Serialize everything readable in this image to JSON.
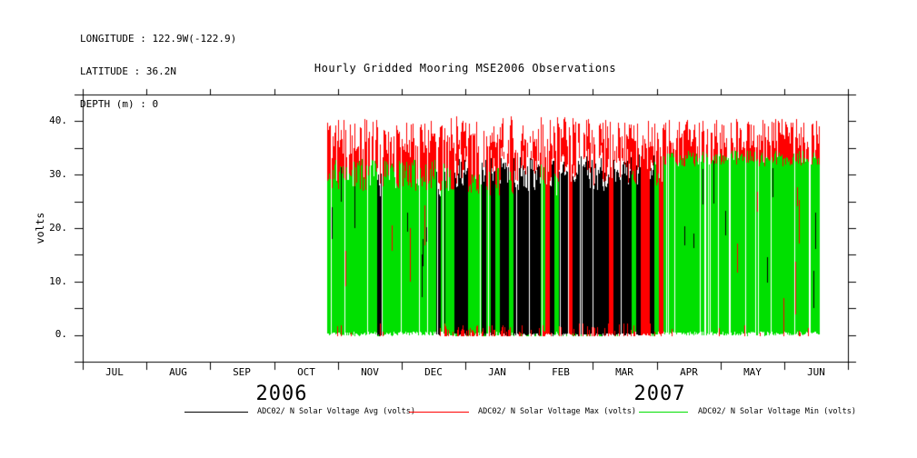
{
  "header": {
    "lines": [
      "LONGITUDE : 122.9W(-122.9)",
      "LATITUDE : 36.2N",
      "DEPTH (m) : 0"
    ]
  },
  "chart_data": {
    "type": "line",
    "title": "Hourly Gridded Mooring MSE2006 Observations",
    "ylabel": "volts",
    "ylim": [
      -5,
      45
    ],
    "yticks": [
      0,
      10,
      20,
      30,
      40
    ],
    "ytick_labels": [
      "0.",
      "10.",
      "20.",
      "30.",
      "40."
    ],
    "ytick_minor_step": 5,
    "grid": "off",
    "x_months": [
      "JUL",
      "AUG",
      "SEP",
      "OCT",
      "NOV",
      "DEC",
      "JAN",
      "FEB",
      "MAR",
      "APR",
      "MAY",
      "JUN"
    ],
    "x_years": [
      {
        "label": "2006"
      },
      {
        "label": "2007"
      }
    ],
    "series": [
      {
        "name": "ADC02/ N Solar Voltage Avg (volts)",
        "color": "#000000"
      },
      {
        "name": "ADC02/ N Solar Voltage Max (volts)",
        "color": "#ff0000"
      },
      {
        "name": "ADC02/ N Solar Voltage Min (volts)",
        "color": "#00e000"
      }
    ],
    "data_coverage": {
      "start": "2006-10-26",
      "end": "2007-06-17"
    },
    "x_start_month": 3.83,
    "x_end_month": 11.55,
    "envelope_segments": [
      {
        "from": 3.83,
        "to": 5.66,
        "label": "late Oct - mid Dec 2006 (Min series dominant)",
        "weights": {
          "green": 0.9,
          "black": 0.05,
          "red": 0.05
        },
        "green_top_volts": [
          27,
          33
        ],
        "black_top_volts": [
          25,
          31
        ],
        "red_tip_volts": [
          33,
          40.5
        ],
        "bottom_volts": [
          0,
          1
        ],
        "gap_prob": 0.1,
        "black_sliver_prob": 0.06,
        "red_drop_prob": 0.05,
        "red_bottom_prob": 0.07
      },
      {
        "from": 5.66,
        "to": 8.55,
        "label": "mid Dec 2006 - mid Mar 2007 (Avg series dominant)",
        "weights": {
          "green": 0.3,
          "black": 0.58,
          "red": 0.12
        },
        "green_top_volts": [
          26,
          32
        ],
        "black_top_volts": [
          27,
          33.5
        ],
        "red_tip_volts": [
          34,
          41
        ],
        "bottom_volts": [
          0,
          1
        ],
        "gap_prob": 0.05,
        "black_sliver_prob": 0.0,
        "red_drop_prob": 0.05,
        "red_bottom_prob": 0.35
      },
      {
        "from": 8.55,
        "to": 9.1,
        "label": "late Mar 2007 (mixed, many Max stripes)",
        "weights": {
          "green": 0.35,
          "black": 0.35,
          "red": 0.3
        },
        "green_top_volts": [
          27,
          33
        ],
        "black_top_volts": [
          28,
          34
        ],
        "red_tip_volts": [
          34,
          40.5
        ],
        "bottom_volts": [
          0,
          1
        ],
        "gap_prob": 0.04,
        "black_sliver_prob": 0.0,
        "red_drop_prob": 0.05,
        "red_bottom_prob": 0.25
      },
      {
        "from": 9.1,
        "to": 11.55,
        "label": "Apr - mid Jun 2007 (Min series dominant)",
        "weights": {
          "green": 0.92,
          "black": 0.03,
          "red": 0.05
        },
        "green_top_volts": [
          31.5,
          34.5
        ],
        "black_top_volts": [
          28,
          33
        ],
        "red_tip_volts": [
          34.5,
          40.5
        ],
        "bottom_volts": [
          0,
          1
        ],
        "gap_prob": 0.09,
        "black_sliver_prob": 0.05,
        "red_drop_prob": 0.07,
        "red_bottom_prob": 0.08
      }
    ]
  }
}
